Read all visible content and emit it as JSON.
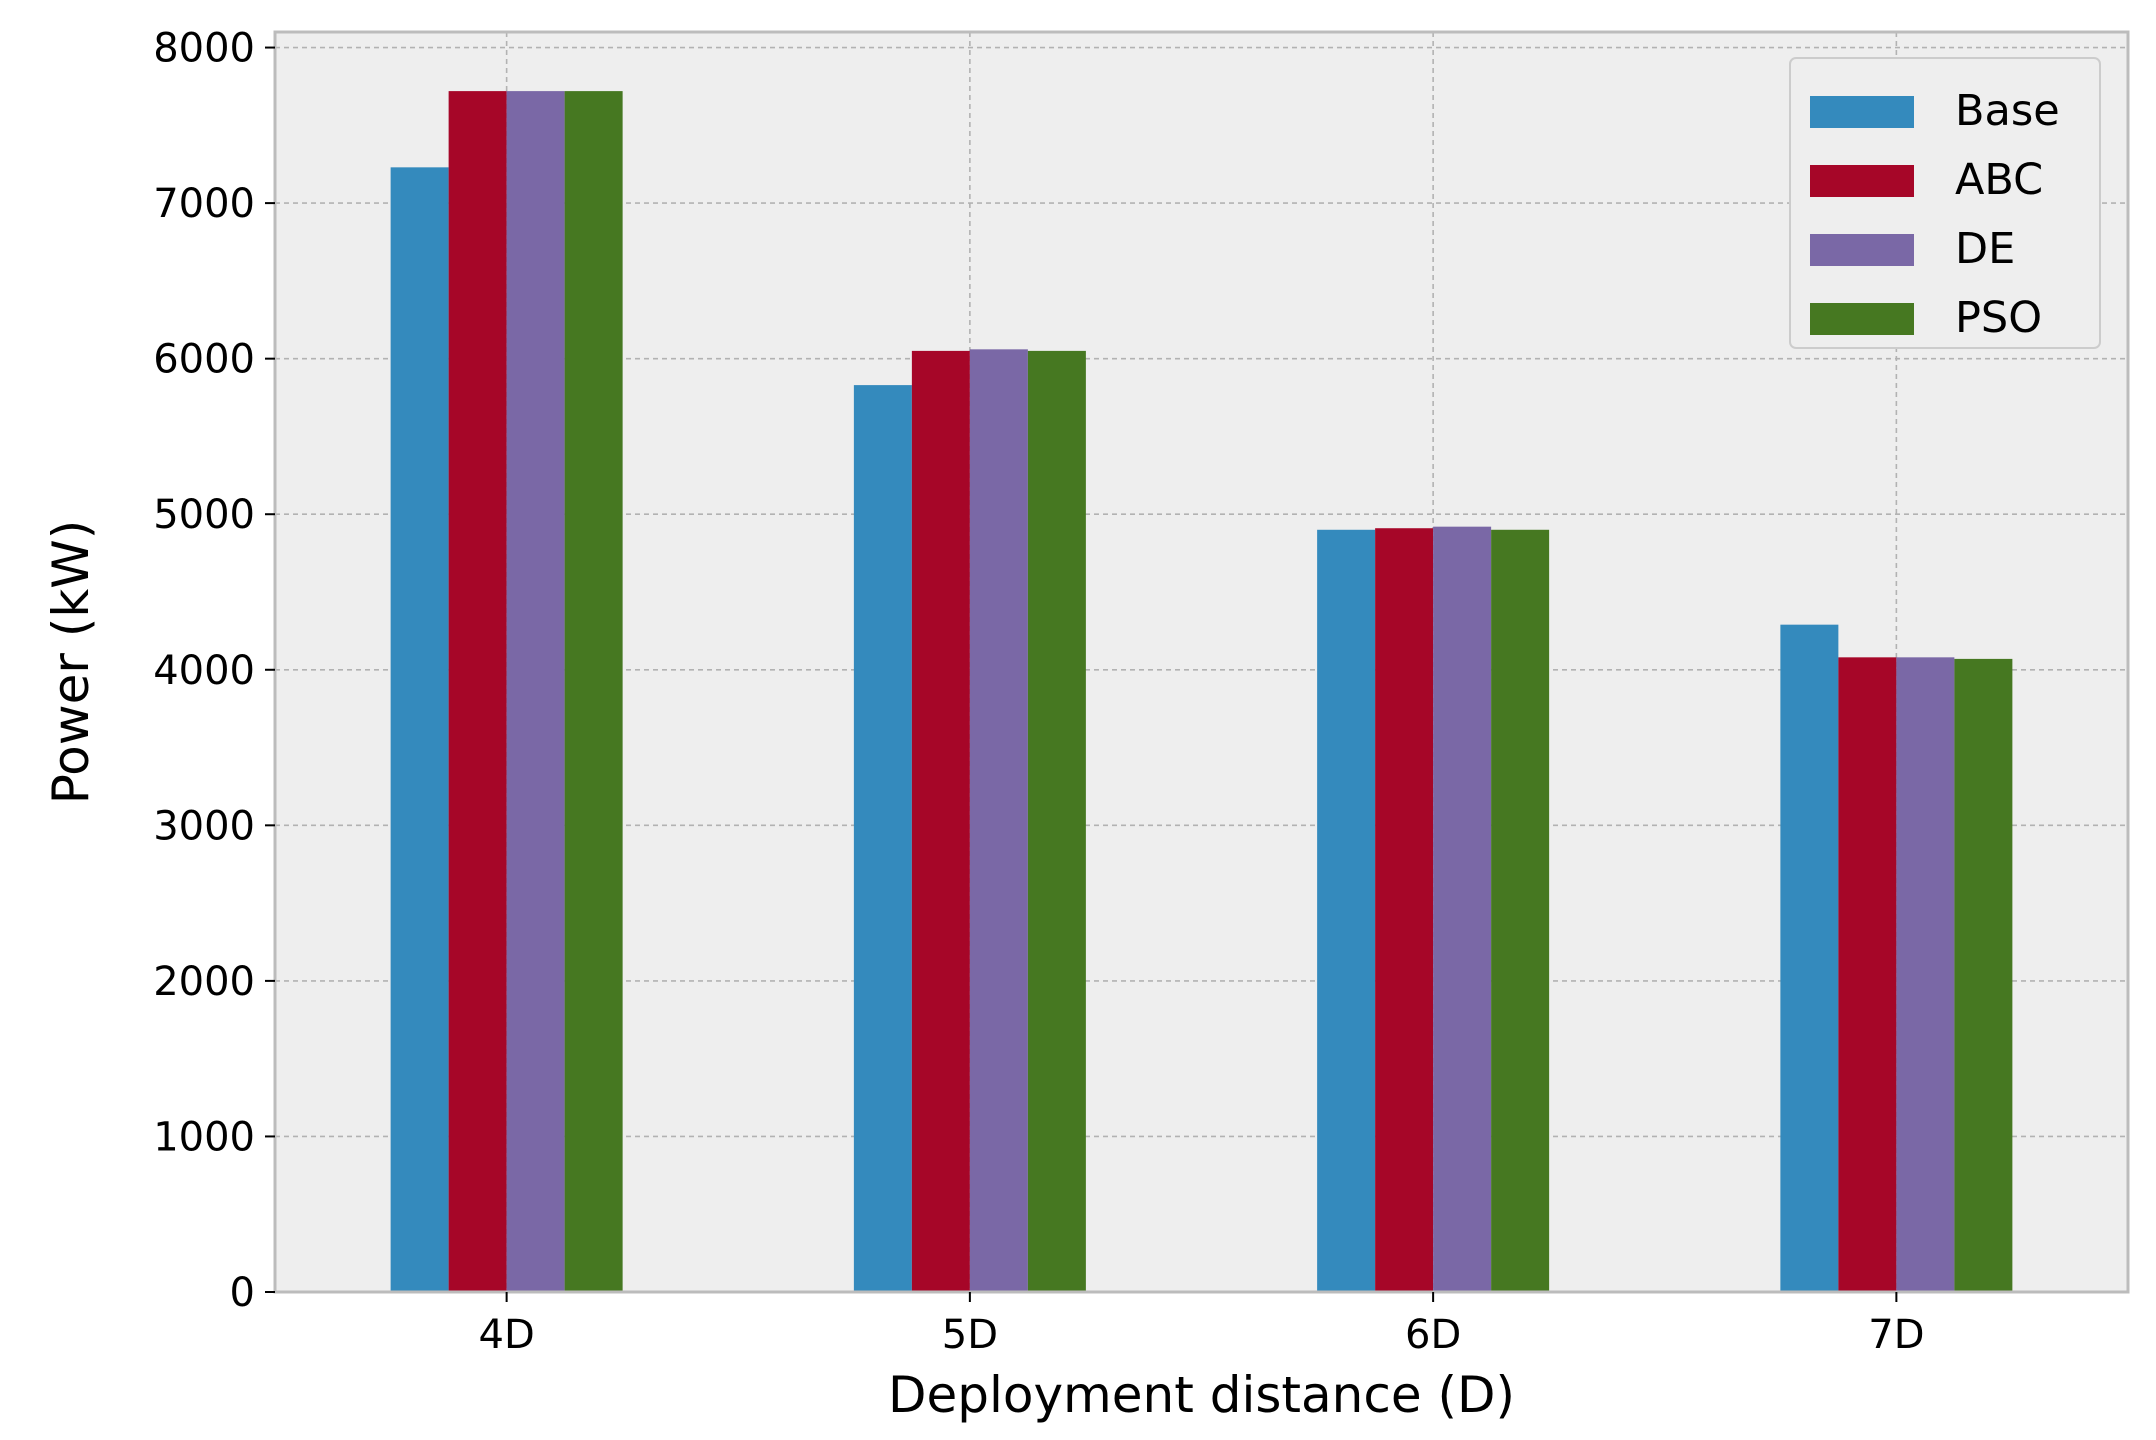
{
  "chart_data": {
    "type": "bar",
    "title": "",
    "xlabel": "Deployment distance (D)",
    "ylabel": "Power (kW)",
    "categories": [
      "4D",
      "5D",
      "6D",
      "7D"
    ],
    "series": [
      {
        "name": "Base",
        "color": "#348ABD",
        "values": [
          7230,
          5830,
          4900,
          4290
        ]
      },
      {
        "name": "ABC",
        "color": "#A60628",
        "values": [
          7720,
          6050,
          4910,
          4080
        ]
      },
      {
        "name": "DE",
        "color": "#7A68A6",
        "values": [
          7720,
          6060,
          4920,
          4080
        ]
      },
      {
        "name": "PSO",
        "color": "#467821",
        "values": [
          7720,
          6050,
          4900,
          4070
        ]
      }
    ],
    "ylim": [
      0,
      8100
    ],
    "yticks": [
      0,
      1000,
      2000,
      3000,
      4000,
      5000,
      6000,
      7000,
      8000
    ],
    "yticklabels": [
      "0",
      "1000",
      "2000",
      "3000",
      "4000",
      "5000",
      "6000",
      "7000",
      "8000"
    ],
    "grid": true,
    "legend_position": "top-right",
    "plot_background": "#EEEEEE",
    "grid_color": "#B2B2B2"
  }
}
